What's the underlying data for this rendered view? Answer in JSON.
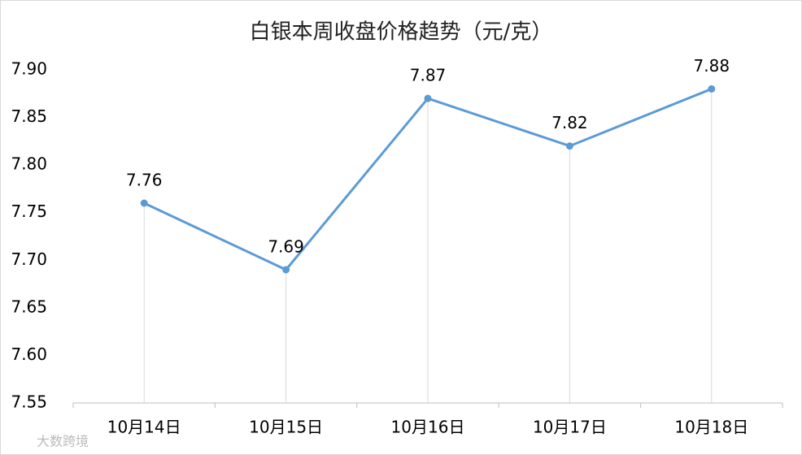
{
  "chart_data": {
    "type": "line",
    "title": "白银本周收盘价格趋势（元/克）",
    "categories": [
      "10月14日",
      "10月15日",
      "10月16日",
      "10月17日",
      "10月18日"
    ],
    "values": [
      7.76,
      7.69,
      7.87,
      7.82,
      7.88
    ],
    "color": "#5b9bd5",
    "ylim": [
      7.55,
      7.9
    ],
    "yticks": [
      7.55,
      {
        "value": 7.6,
        "label": "7.60"
      },
      7.65,
      {
        "value": 7.7,
        "label": "7.70"
      },
      7.75,
      {
        "value": 7.8,
        "label": "7.80"
      },
      7.85,
      {
        "value": 7.9,
        "label": "7.90"
      }
    ],
    "drop_lines": true,
    "data_labels": true,
    "watermark": "大数跨境"
  }
}
